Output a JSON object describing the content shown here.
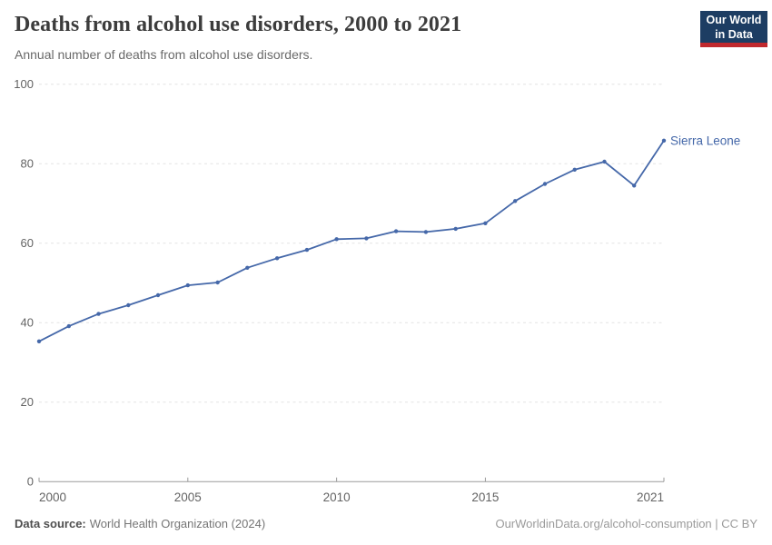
{
  "header": {
    "title": "Deaths from alcohol use disorders, 2000 to 2021",
    "subtitle": "Annual number of deaths from alcohol use disorders.",
    "logo_line1": "Our World",
    "logo_line2": "in Data"
  },
  "chart_data": {
    "type": "line",
    "title": "Deaths from alcohol use disorders, 2000 to 2021",
    "xlabel": "",
    "ylabel": "",
    "xlim": [
      2000,
      2021
    ],
    "ylim": [
      0,
      100
    ],
    "x_ticks": [
      2000,
      2005,
      2010,
      2015,
      2021
    ],
    "y_ticks": [
      0,
      20,
      40,
      60,
      80,
      100
    ],
    "grid": "horizontal-dashed",
    "legend_position": "end-of-line-label",
    "series": [
      {
        "name": "Sierra Leone",
        "x": [
          2000,
          2001,
          2002,
          2003,
          2004,
          2005,
          2006,
          2007,
          2008,
          2009,
          2010,
          2011,
          2012,
          2013,
          2014,
          2015,
          2016,
          2017,
          2018,
          2019,
          2020,
          2021
        ],
        "values": [
          35.3,
          39.1,
          42.2,
          44.4,
          46.9,
          49.4,
          50.1,
          53.8,
          56.2,
          58.3,
          61.0,
          61.2,
          63.0,
          62.8,
          63.6,
          65.0,
          70.6,
          74.9,
          78.5,
          80.5,
          74.5,
          85.8
        ]
      }
    ]
  },
  "footer": {
    "source_label": "Data source:",
    "source_value": "World Health Organization (2024)",
    "credit": "OurWorldinData.org/alcohol-consumption | CC BY"
  },
  "colors": {
    "line": "#4568a9",
    "grid": "#e3e3e3",
    "axis": "#9a9a9a",
    "tick_label": "#636363",
    "series_label": "#4568a9",
    "title": "#3c3c3c",
    "subtitle": "#696969",
    "logo_bg": "#1d3d63",
    "logo_accent": "#c0282d"
  }
}
